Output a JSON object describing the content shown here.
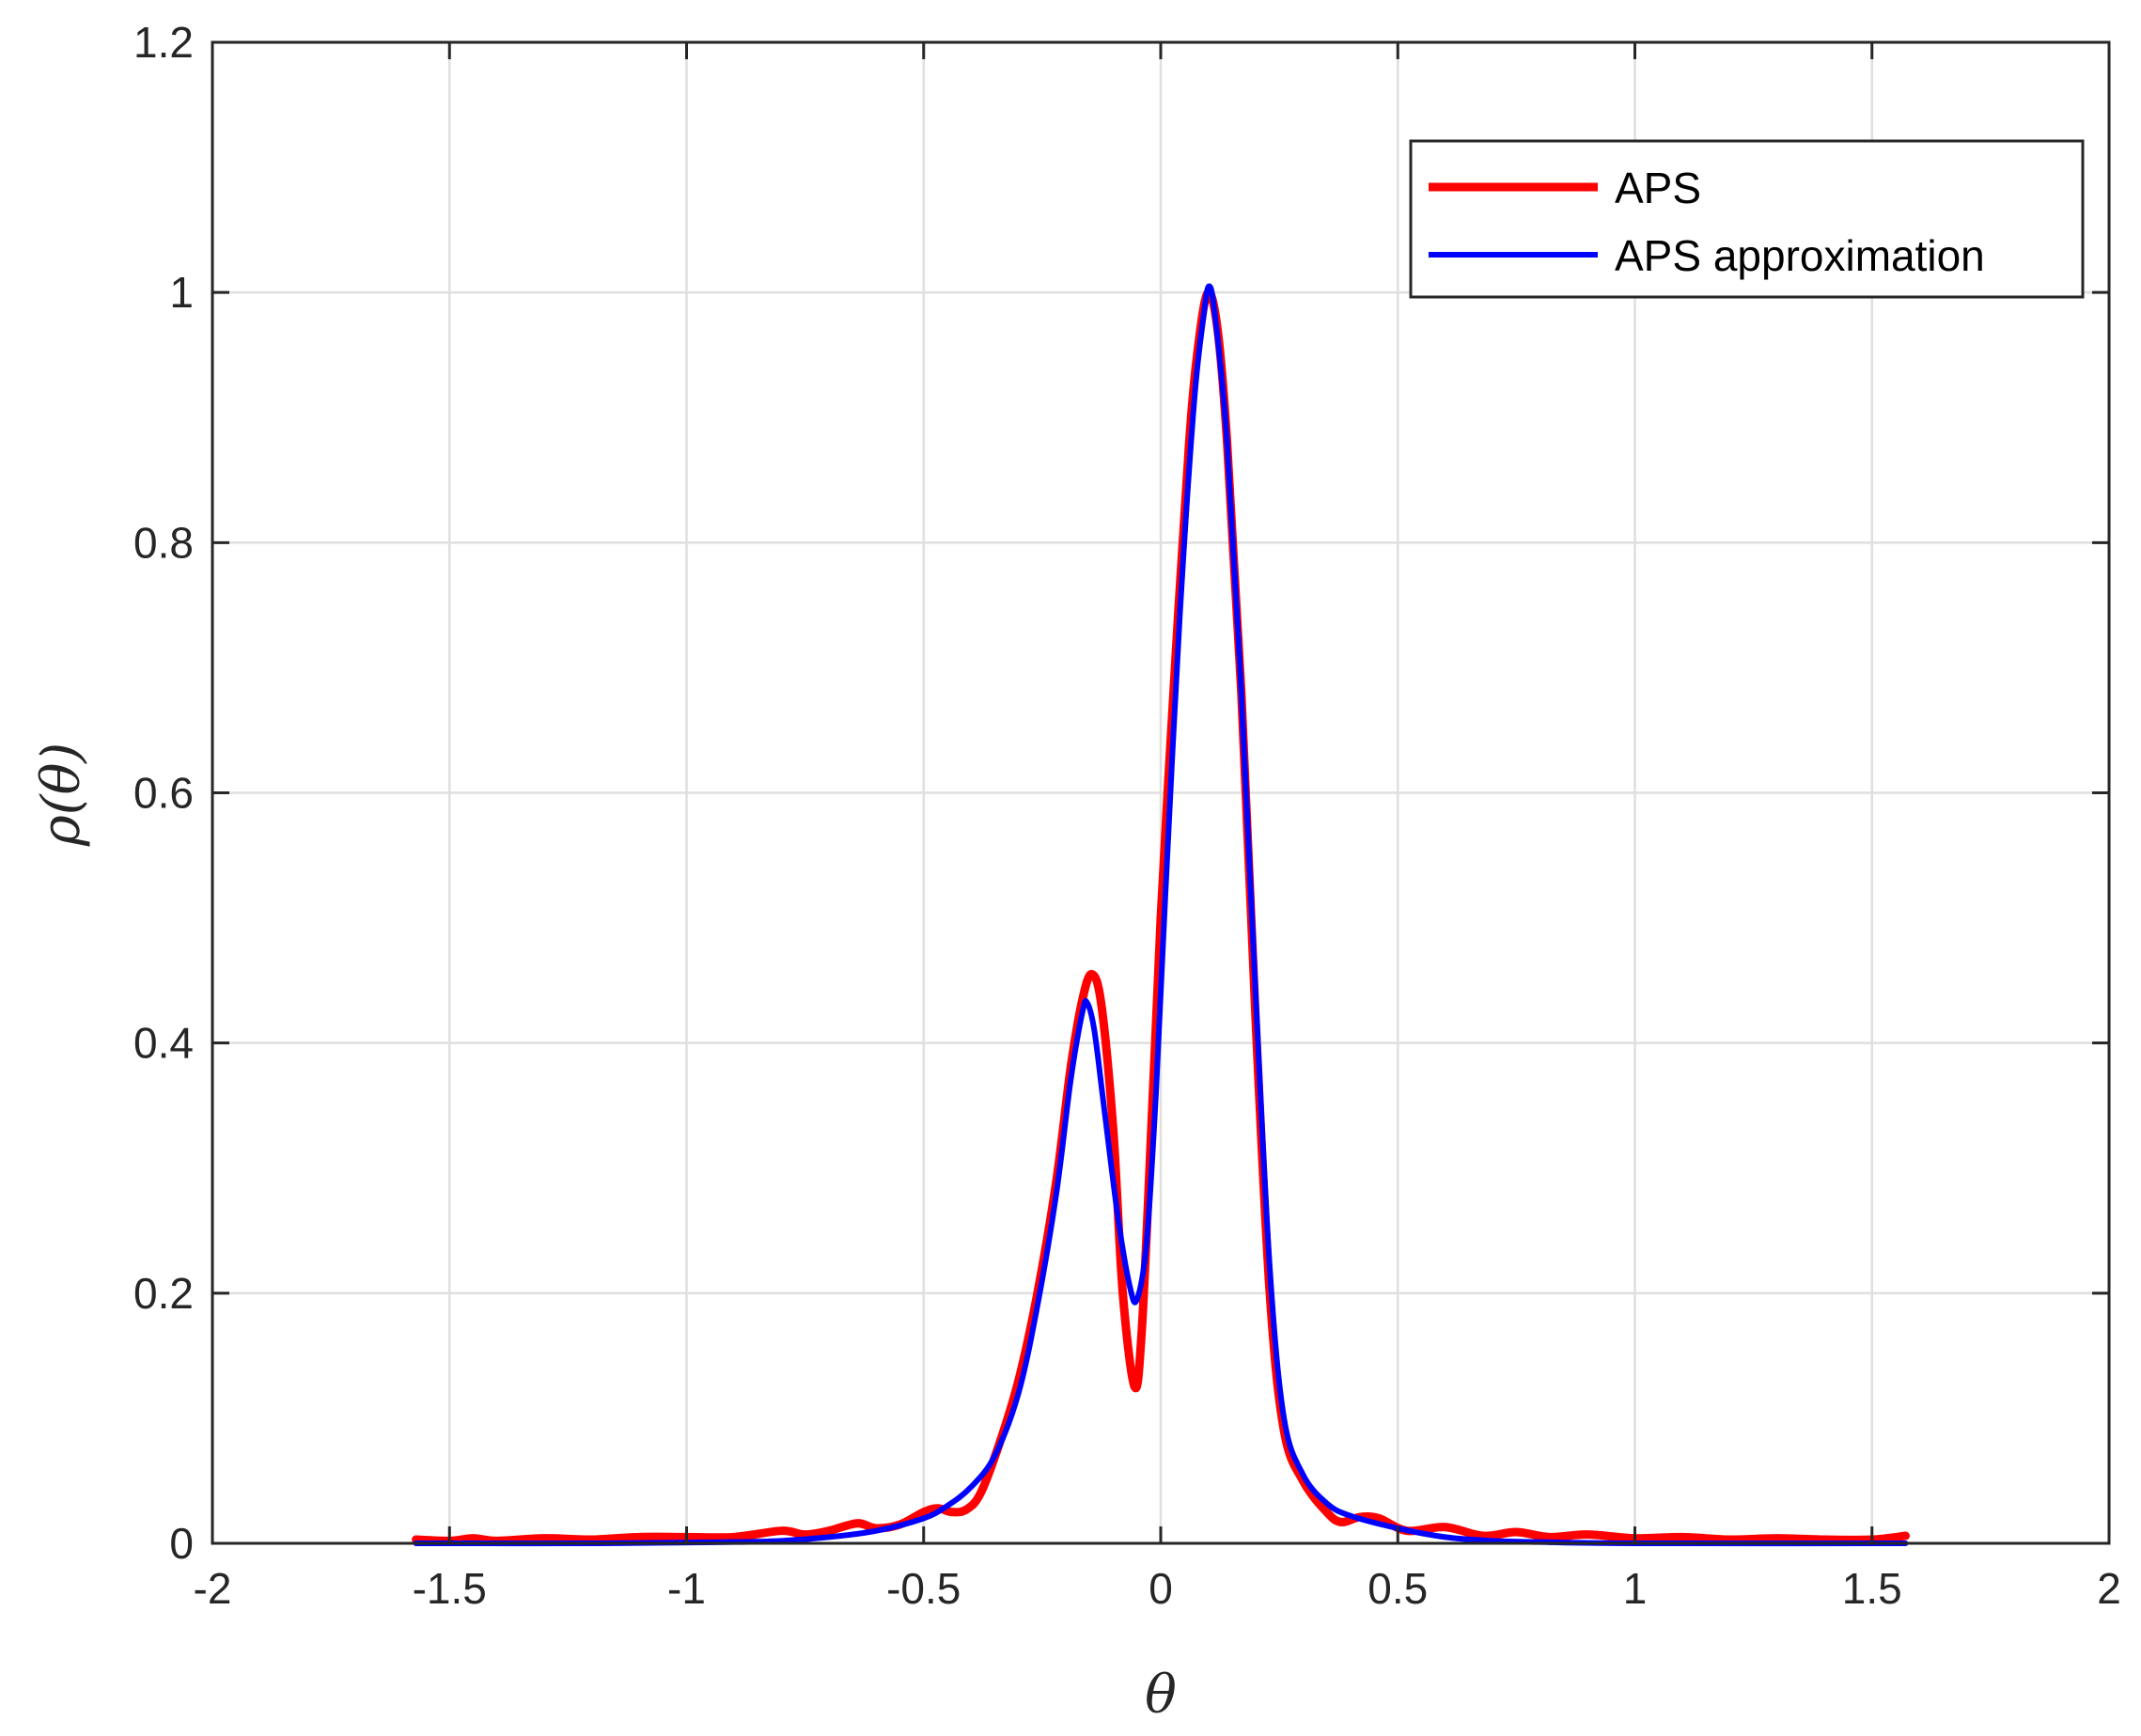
{
  "chart_data": {
    "type": "line",
    "title": "",
    "xlabel": "θ",
    "ylabel": "ρ(θ)",
    "xlim": [
      -2,
      2
    ],
    "ylim": [
      0,
      1.2
    ],
    "xticks": [
      -2,
      -1.5,
      -1,
      -0.5,
      0,
      0.5,
      1,
      1.5,
      2
    ],
    "xtick_labels": [
      "-2",
      "-1.5",
      "-1",
      "-0.5",
      "0",
      "0.5",
      "1",
      "1.5",
      "2"
    ],
    "yticks": [
      0,
      0.2,
      0.4,
      0.6,
      0.8,
      1,
      1.2
    ],
    "ytick_labels": [
      "0",
      "0.2",
      "0.4",
      "0.6",
      "0.8",
      "1",
      "1.2"
    ],
    "grid": true,
    "legend_position": "top-right",
    "series": [
      {
        "name": "APS",
        "color": "#ff0000",
        "points": [
          [
            -1.5708,
            0.003
          ],
          [
            -1.5,
            0.002
          ],
          [
            -1.45,
            0.004
          ],
          [
            -1.4,
            0.002
          ],
          [
            -1.3,
            0.004
          ],
          [
            -1.2,
            0.003
          ],
          [
            -1.1,
            0.005
          ],
          [
            -1.0,
            0.005
          ],
          [
            -0.9,
            0.005
          ],
          [
            -0.8,
            0.01
          ],
          [
            -0.75,
            0.007
          ],
          [
            -0.7,
            0.01
          ],
          [
            -0.64,
            0.016
          ],
          [
            -0.6,
            0.012
          ],
          [
            -0.55,
            0.015
          ],
          [
            -0.5,
            0.025
          ],
          [
            -0.47,
            0.028
          ],
          [
            -0.44,
            0.025
          ],
          [
            -0.41,
            0.027
          ],
          [
            -0.38,
            0.04
          ],
          [
            -0.34,
            0.08
          ],
          [
            -0.3,
            0.13
          ],
          [
            -0.26,
            0.2
          ],
          [
            -0.22,
            0.29
          ],
          [
            -0.19,
            0.38
          ],
          [
            -0.165,
            0.435
          ],
          [
            -0.145,
            0.455
          ],
          [
            -0.125,
            0.43
          ],
          [
            -0.1,
            0.33
          ],
          [
            -0.08,
            0.2
          ],
          [
            -0.055,
            0.125
          ],
          [
            -0.04,
            0.17
          ],
          [
            -0.02,
            0.33
          ],
          [
            0.0,
            0.5
          ],
          [
            0.03,
            0.7
          ],
          [
            0.06,
            0.88
          ],
          [
            0.08,
            0.96
          ],
          [
            0.1,
            1.0
          ],
          [
            0.12,
            0.97
          ],
          [
            0.14,
            0.88
          ],
          [
            0.17,
            0.68
          ],
          [
            0.2,
            0.42
          ],
          [
            0.23,
            0.2
          ],
          [
            0.26,
            0.09
          ],
          [
            0.3,
            0.05
          ],
          [
            0.35,
            0.025
          ],
          [
            0.38,
            0.017
          ],
          [
            0.42,
            0.021
          ],
          [
            0.46,
            0.02
          ],
          [
            0.52,
            0.01
          ],
          [
            0.6,
            0.013
          ],
          [
            0.68,
            0.006
          ],
          [
            0.75,
            0.009
          ],
          [
            0.82,
            0.005
          ],
          [
            0.9,
            0.007
          ],
          [
            1.0,
            0.004
          ],
          [
            1.1,
            0.005
          ],
          [
            1.2,
            0.003
          ],
          [
            1.3,
            0.004
          ],
          [
            1.4,
            0.003
          ],
          [
            1.5,
            0.003
          ],
          [
            1.5708,
            0.006
          ]
        ]
      },
      {
        "name": "APS approximation",
        "color": "#0000ff",
        "points": [
          [
            -1.5708,
            0.0
          ],
          [
            -1.2,
            0.0
          ],
          [
            -0.9,
            0.001
          ],
          [
            -0.8,
            0.002
          ],
          [
            -0.7,
            0.005
          ],
          [
            -0.6,
            0.01
          ],
          [
            -0.5,
            0.02
          ],
          [
            -0.45,
            0.03
          ],
          [
            -0.4,
            0.045
          ],
          [
            -0.35,
            0.07
          ],
          [
            -0.3,
            0.12
          ],
          [
            -0.26,
            0.19
          ],
          [
            -0.22,
            0.28
          ],
          [
            -0.19,
            0.37
          ],
          [
            -0.165,
            0.425
          ],
          [
            -0.155,
            0.432
          ],
          [
            -0.14,
            0.41
          ],
          [
            -0.12,
            0.35
          ],
          [
            -0.09,
            0.26
          ],
          [
            -0.065,
            0.205
          ],
          [
            -0.05,
            0.195
          ],
          [
            -0.03,
            0.24
          ],
          [
            -0.01,
            0.36
          ],
          [
            0.01,
            0.52
          ],
          [
            0.04,
            0.74
          ],
          [
            0.07,
            0.91
          ],
          [
            0.09,
            0.98
          ],
          [
            0.102,
            1.005
          ],
          [
            0.115,
            0.98
          ],
          [
            0.14,
            0.88
          ],
          [
            0.17,
            0.68
          ],
          [
            0.2,
            0.44
          ],
          [
            0.23,
            0.22
          ],
          [
            0.26,
            0.1
          ],
          [
            0.3,
            0.055
          ],
          [
            0.35,
            0.032
          ],
          [
            0.4,
            0.022
          ],
          [
            0.5,
            0.012
          ],
          [
            0.6,
            0.005
          ],
          [
            0.7,
            0.002
          ],
          [
            0.8,
            0.001
          ],
          [
            1.0,
            0.0
          ],
          [
            1.5708,
            0.0
          ]
        ]
      }
    ]
  }
}
